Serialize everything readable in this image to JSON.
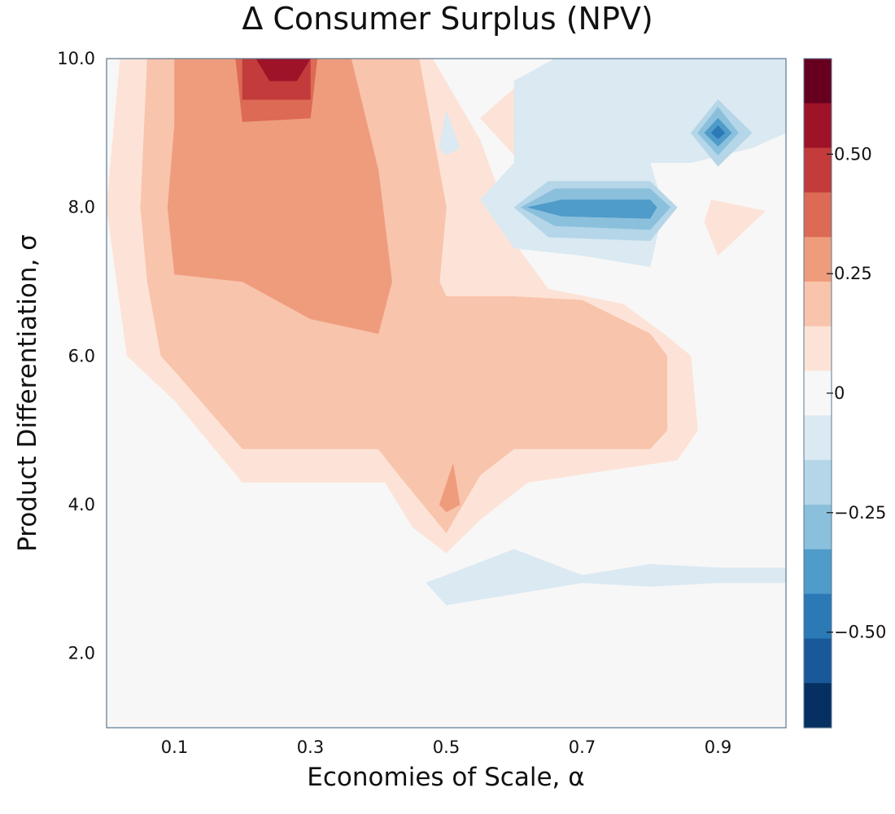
{
  "chart_data": {
    "type": "contour",
    "title": "Δ Consumer Surplus (NPV)",
    "xlabel": "Economies of Scale, α",
    "ylabel": "Product Differentiation, σ",
    "xlim": [
      0.0,
      1.0
    ],
    "ylim": [
      1.0,
      10.0
    ],
    "x_ticks": [
      0.1,
      0.3,
      0.5,
      0.7,
      0.9
    ],
    "x_tick_labels": [
      "0.1",
      "0.3",
      "0.5",
      "0.7",
      "0.9"
    ],
    "y_ticks": [
      2.0,
      4.0,
      6.0,
      8.0,
      10.0
    ],
    "y_tick_labels": [
      "2.0",
      "4.0",
      "6.0",
      "8.0",
      "10.0"
    ],
    "colorbar": {
      "min": -0.7,
      "max": 0.7,
      "ticks": [
        0.5,
        0.25,
        0,
        -0.25,
        -0.5
      ],
      "tick_labels": [
        "0.50",
        "0.25",
        "0",
        "−0.25",
        "−0.50"
      ],
      "colors": [
        "#67001f",
        "#9e1328",
        "#c33b3b",
        "#dc6a55",
        "#ef9c7d",
        "#f8c4ac",
        "#fde3d7",
        "#f7f7f7",
        "#dae9f2",
        "#b5d6e8",
        "#8ac0dc",
        "#4f9bc9",
        "#2b79b5",
        "#1a5999",
        "#053061"
      ]
    },
    "regions": [
      {
        "level": "0 to 0.1",
        "color": "#fde3d7",
        "points": [
          [
            0.02,
            10.0
          ],
          [
            0.48,
            10.0
          ],
          [
            0.55,
            8.9
          ],
          [
            0.61,
            7.4
          ],
          [
            0.65,
            6.9
          ],
          [
            0.76,
            6.7
          ],
          [
            0.82,
            6.3
          ],
          [
            0.86,
            6.0
          ],
          [
            0.87,
            5.0
          ],
          [
            0.84,
            4.6
          ],
          [
            0.62,
            4.3
          ],
          [
            0.55,
            3.8
          ],
          [
            0.5,
            3.35
          ],
          [
            0.45,
            3.7
          ],
          [
            0.41,
            4.3
          ],
          [
            0.29,
            4.3
          ],
          [
            0.2,
            4.3
          ],
          [
            0.1,
            5.4
          ],
          [
            0.03,
            6.0
          ],
          [
            0.0,
            8.0
          ]
        ]
      },
      {
        "level": "0 to 0.1",
        "color": "#fde3d7",
        "points": [
          [
            0.55,
            9.2
          ],
          [
            0.6,
            9.6
          ],
          [
            0.7,
            10.0
          ],
          [
            0.86,
            10.0
          ],
          [
            0.8,
            8.6
          ],
          [
            0.7,
            8.6
          ],
          [
            0.6,
            8.7
          ]
        ]
      },
      {
        "level": "0 to 0.1",
        "color": "#fde3d7",
        "points": [
          [
            0.89,
            8.1
          ],
          [
            0.97,
            7.95
          ],
          [
            0.9,
            7.35
          ],
          [
            0.88,
            7.8
          ]
        ]
      },
      {
        "level": "0.1 to 0.2",
        "color": "#f8c4ac",
        "points": [
          [
            0.06,
            10.0
          ],
          [
            0.46,
            10.0
          ],
          [
            0.5,
            8.0
          ],
          [
            0.49,
            7.0
          ],
          [
            0.5,
            6.8
          ],
          [
            0.6,
            6.8
          ],
          [
            0.7,
            6.75
          ],
          [
            0.8,
            6.3
          ],
          [
            0.825,
            6.0
          ],
          [
            0.825,
            5.0
          ],
          [
            0.8,
            4.75
          ],
          [
            0.6,
            4.75
          ],
          [
            0.55,
            4.4
          ],
          [
            0.5,
            3.62
          ],
          [
            0.43,
            4.4
          ],
          [
            0.4,
            4.75
          ],
          [
            0.2,
            4.75
          ],
          [
            0.1,
            5.8
          ],
          [
            0.08,
            6.0
          ],
          [
            0.06,
            7.0
          ],
          [
            0.05,
            8.0
          ]
        ]
      },
      {
        "level": "0.1 to 0.2",
        "color": "#f8c4ac",
        "points": [
          [
            0.6,
            9.2
          ],
          [
            0.65,
            9.6
          ],
          [
            0.75,
            10.0
          ],
          [
            0.83,
            10.0
          ],
          [
            0.82,
            9.0
          ],
          [
            0.8,
            8.8
          ],
          [
            0.7,
            8.75
          ],
          [
            0.6,
            8.9
          ]
        ]
      },
      {
        "level": "0.2 to 0.3",
        "color": "#ef9c7d",
        "points": [
          [
            0.1,
            10.0
          ],
          [
            0.36,
            10.0
          ],
          [
            0.4,
            8.5
          ],
          [
            0.42,
            7.0
          ],
          [
            0.4,
            6.3
          ],
          [
            0.3,
            6.5
          ],
          [
            0.2,
            7.0
          ],
          [
            0.1,
            7.1
          ],
          [
            0.09,
            8.0
          ],
          [
            0.1,
            9.1
          ]
        ]
      },
      {
        "level": "0.2 to 0.3",
        "color": "#ef9c7d",
        "points": [
          [
            0.49,
            4.0
          ],
          [
            0.51,
            4.55
          ],
          [
            0.52,
            4.0
          ],
          [
            0.5,
            3.9
          ]
        ]
      },
      {
        "level": "0.2 to 0.3",
        "color": "#ef9c7d",
        "points": [
          [
            0.61,
            9.0
          ],
          [
            0.7,
            9.3
          ],
          [
            0.8,
            9.55
          ],
          [
            0.82,
            9.0
          ],
          [
            0.8,
            8.9
          ],
          [
            0.7,
            8.9
          ],
          [
            0.61,
            8.9
          ]
        ]
      },
      {
        "level": "0.3 to 0.4",
        "color": "#dc6a55",
        "points": [
          [
            0.19,
            10.0
          ],
          [
            0.31,
            10.0
          ],
          [
            0.3,
            9.2
          ],
          [
            0.2,
            9.15
          ]
        ]
      },
      {
        "level": "0.3 to 0.4",
        "color": "#dc6a55",
        "points": [
          [
            0.77,
            9.05
          ],
          [
            0.8,
            9.1
          ],
          [
            0.8,
            8.95
          ]
        ]
      },
      {
        "level": "0.4 to 0.5",
        "color": "#c33b3b",
        "points": [
          [
            0.2,
            10.0
          ],
          [
            0.3,
            10.0
          ],
          [
            0.3,
            9.45
          ],
          [
            0.2,
            9.45
          ]
        ]
      },
      {
        "level": "0.5 to 0.6",
        "color": "#9e1328",
        "points": [
          [
            0.22,
            10.0
          ],
          [
            0.3,
            10.0
          ],
          [
            0.28,
            9.7
          ],
          [
            0.24,
            9.7
          ]
        ]
      },
      {
        "level": "-0.1 to 0",
        "color": "#dae9f2",
        "points": [
          [
            0.66,
            10.0
          ],
          [
            1.0,
            10.0
          ],
          [
            1.0,
            9.0
          ],
          [
            0.95,
            8.8
          ],
          [
            0.86,
            8.6
          ],
          [
            0.8,
            8.6
          ],
          [
            0.82,
            8.0
          ],
          [
            0.8,
            7.2
          ],
          [
            0.7,
            7.35
          ],
          [
            0.6,
            7.45
          ],
          [
            0.55,
            8.1
          ],
          [
            0.6,
            8.6
          ],
          [
            0.6,
            9.7
          ]
        ]
      },
      {
        "level": "-0.1 to 0",
        "color": "#dae9f2",
        "points": [
          [
            0.47,
            2.95
          ],
          [
            0.5,
            3.05
          ],
          [
            0.6,
            3.4
          ],
          [
            0.7,
            3.05
          ],
          [
            0.8,
            3.2
          ],
          [
            0.9,
            3.15
          ],
          [
            1.0,
            3.15
          ],
          [
            1.0,
            2.95
          ],
          [
            0.9,
            2.95
          ],
          [
            0.8,
            2.9
          ],
          [
            0.7,
            2.95
          ],
          [
            0.6,
            2.8
          ],
          [
            0.5,
            2.65
          ]
        ]
      },
      {
        "level": "-0.1 to 0",
        "color": "#dae9f2",
        "points": [
          [
            0.49,
            8.8
          ],
          [
            0.5,
            9.3
          ],
          [
            0.52,
            8.8
          ],
          [
            0.5,
            8.7
          ]
        ]
      },
      {
        "level": "-0.2 to -0.1",
        "color": "#b5d6e8",
        "points": [
          [
            0.6,
            8.0
          ],
          [
            0.65,
            8.35
          ],
          [
            0.8,
            8.35
          ],
          [
            0.84,
            8.0
          ],
          [
            0.8,
            7.55
          ],
          [
            0.65,
            7.6
          ]
        ]
      },
      {
        "level": "-0.2 to -0.1",
        "color": "#b5d6e8",
        "points": [
          [
            0.86,
            9.0
          ],
          [
            0.9,
            9.45
          ],
          [
            0.95,
            9.0
          ],
          [
            0.9,
            8.55
          ]
        ]
      },
      {
        "level": "-0.3 to -0.2",
        "color": "#8ac0dc",
        "points": [
          [
            0.61,
            8.0
          ],
          [
            0.66,
            8.25
          ],
          [
            0.8,
            8.25
          ],
          [
            0.83,
            8.0
          ],
          [
            0.8,
            7.7
          ],
          [
            0.66,
            7.75
          ]
        ]
      },
      {
        "level": "-0.3 to -0.2",
        "color": "#8ac0dc",
        "points": [
          [
            0.87,
            9.0
          ],
          [
            0.9,
            9.35
          ],
          [
            0.93,
            9.0
          ],
          [
            0.9,
            8.7
          ]
        ]
      },
      {
        "level": "-0.4 to -0.3",
        "color": "#4f9bc9",
        "points": [
          [
            0.62,
            8.0
          ],
          [
            0.67,
            8.1
          ],
          [
            0.8,
            8.1
          ],
          [
            0.81,
            8.0
          ],
          [
            0.8,
            7.85
          ],
          [
            0.67,
            7.88
          ]
        ]
      },
      {
        "level": "-0.4 to -0.3",
        "color": "#4f9bc9",
        "points": [
          [
            0.88,
            9.0
          ],
          [
            0.9,
            9.2
          ],
          [
            0.92,
            9.0
          ],
          [
            0.9,
            8.82
          ]
        ]
      },
      {
        "level": "-0.5 to -0.4",
        "color": "#2b79b5",
        "points": [
          [
            0.89,
            9.0
          ],
          [
            0.9,
            9.1
          ],
          [
            0.91,
            9.0
          ],
          [
            0.9,
            8.92
          ]
        ]
      }
    ]
  }
}
